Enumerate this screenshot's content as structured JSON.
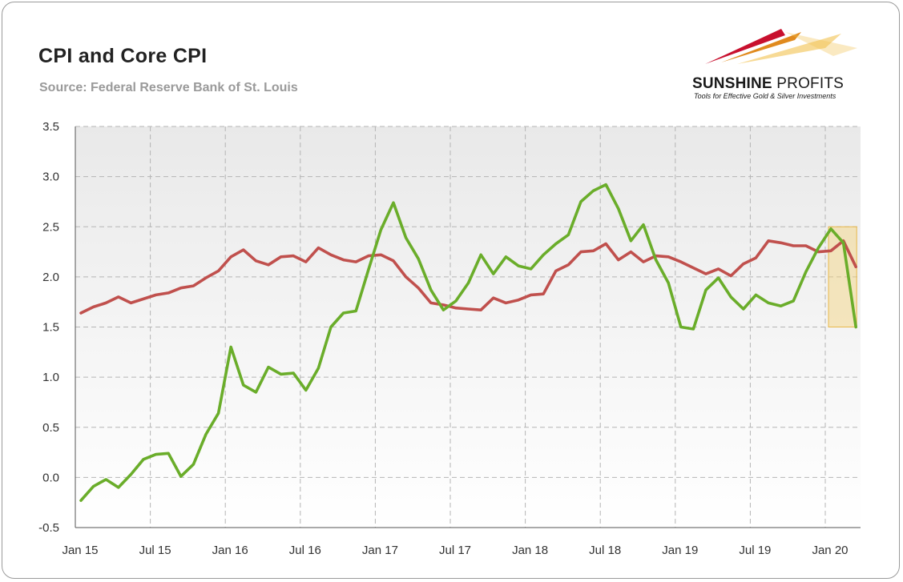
{
  "header": {
    "title": "CPI and Core CPI",
    "subtitle": "Source: Federal Reserve Bank of St. Louis"
  },
  "logo": {
    "name_bold": "SUNSHINE",
    "name_rest": " PROFITS",
    "tagline": "Tools for Effective Gold & Silver Investments",
    "colors": [
      "#c8102e",
      "#e08a1e",
      "#f2c14e"
    ]
  },
  "chart_data": {
    "type": "line",
    "title": "CPI and Core CPI",
    "xlabel": "",
    "ylabel": "",
    "ylim": [
      -0.5,
      3.5
    ],
    "yticks": [
      3.5,
      3.0,
      2.5,
      2.0,
      1.5,
      1.0,
      0.5,
      0.0,
      -0.5
    ],
    "ytick_labels": [
      "3.5",
      "3.0",
      "2.5",
      "2.0",
      "1.5",
      "1.0",
      "0.5",
      "0.0",
      "-0.5"
    ],
    "x_start": "Jan 15",
    "x_end": "Mar 20",
    "xtick_labels": [
      "Jan 15",
      "Jul 15",
      "Jan 16",
      "Jul 16",
      "Jan 17",
      "Jul 17",
      "Jan 18",
      "Jul 18",
      "Jan 19",
      "Jul 19",
      "Jan 20"
    ],
    "grid": true,
    "series": [
      {
        "color": "#6aad2a",
        "values": [
          -0.23,
          -0.09,
          -0.02,
          -0.1,
          0.03,
          0.18,
          0.23,
          0.24,
          0.01,
          0.13,
          0.43,
          0.64,
          1.3,
          0.92,
          0.85,
          1.1,
          1.03,
          1.04,
          0.87,
          1.09,
          1.5,
          1.64,
          1.66,
          2.07,
          2.47,
          2.74,
          2.39,
          2.18,
          1.87,
          1.67,
          1.76,
          1.94,
          2.22,
          2.03,
          2.2,
          2.11,
          2.08,
          2.22,
          2.33,
          2.42,
          2.75,
          2.86,
          2.92,
          2.68,
          2.36,
          2.52,
          2.17,
          1.94,
          1.5,
          1.48,
          1.87,
          1.99,
          1.8,
          1.68,
          1.82,
          1.74,
          1.71,
          1.76,
          2.05,
          2.29,
          2.48,
          2.34,
          1.5
        ]
      },
      {
        "color": "#c0504d",
        "values": [
          1.64,
          1.7,
          1.74,
          1.8,
          1.74,
          1.78,
          1.82,
          1.84,
          1.89,
          1.91,
          1.99,
          2.06,
          2.2,
          2.27,
          2.16,
          2.12,
          2.2,
          2.21,
          2.15,
          2.29,
          2.22,
          2.17,
          2.15,
          2.21,
          2.22,
          2.16,
          2.0,
          1.89,
          1.74,
          1.72,
          1.69,
          1.68,
          1.67,
          1.79,
          1.74,
          1.77,
          1.82,
          1.83,
          2.06,
          2.12,
          2.25,
          2.26,
          2.33,
          2.17,
          2.25,
          2.15,
          2.21,
          2.2,
          2.15,
          2.09,
          2.03,
          2.08,
          2.01,
          2.13,
          2.19,
          2.36,
          2.34,
          2.31,
          2.31,
          2.25,
          2.26,
          2.36,
          2.1
        ]
      }
    ],
    "highlight": {
      "x_from": "Jan 20",
      "x_to": "Mar 20",
      "y_from": 1.5,
      "y_to": 2.5,
      "color": "#f5d27a"
    }
  }
}
